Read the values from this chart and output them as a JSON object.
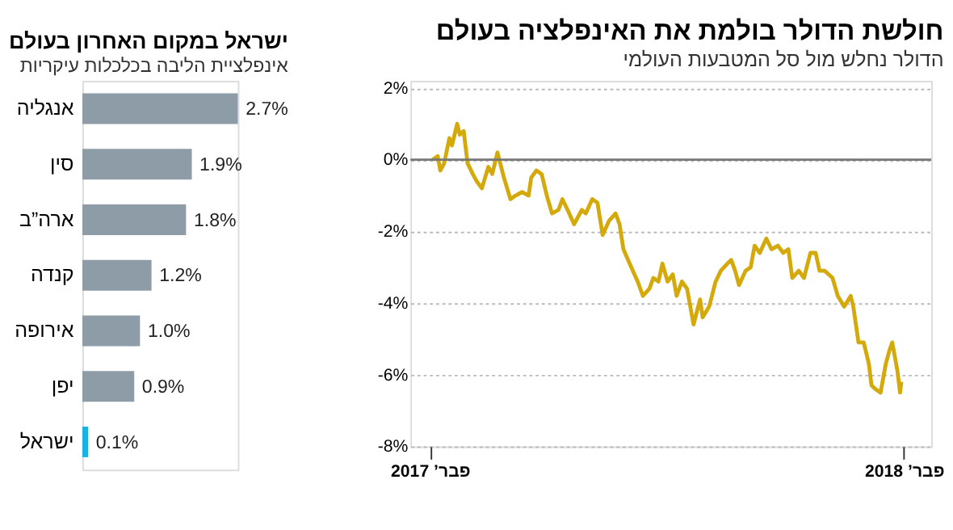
{
  "chart_data": [
    {
      "type": "line",
      "title": "חולשת הדולר בולמת את האינפלציה בעולם",
      "subtitle": "הדולר נחלש מול סל המטבעות העולמי",
      "x": [
        "2017-02-03",
        "2017-02-07",
        "2017-02-09",
        "2017-02-12",
        "2017-02-16",
        "2017-02-18",
        "2017-02-22",
        "2017-02-24",
        "2017-02-27",
        "2017-03-02",
        "2017-03-06",
        "2017-03-09",
        "2017-03-13",
        "2017-03-18",
        "2017-03-21",
        "2017-03-25",
        "2017-03-30",
        "2017-04-04",
        "2017-04-08",
        "2017-04-13",
        "2017-04-18",
        "2017-04-20",
        "2017-04-24",
        "2017-04-28",
        "2017-05-02",
        "2017-05-06",
        "2017-05-11",
        "2017-05-14",
        "2017-05-18",
        "2017-05-23",
        "2017-05-29",
        "2017-06-01",
        "2017-06-06",
        "2017-06-10",
        "2017-06-14",
        "2017-06-19",
        "2017-06-24",
        "2017-06-27",
        "2017-06-30",
        "2017-07-06",
        "2017-07-11",
        "2017-07-15",
        "2017-07-20",
        "2017-07-23",
        "2017-07-27",
        "2017-07-30",
        "2017-08-03",
        "2017-08-07",
        "2017-08-10",
        "2017-08-14",
        "2017-08-18",
        "2017-08-23",
        "2017-08-28",
        "2017-08-30",
        "2017-09-04",
        "2017-09-09",
        "2017-09-13",
        "2017-09-18",
        "2017-09-21",
        "2017-09-24",
        "2017-09-27",
        "2017-10-02",
        "2017-10-06",
        "2017-10-09",
        "2017-10-13",
        "2017-10-18",
        "2017-10-22",
        "2017-10-27",
        "2017-10-31",
        "2017-11-04",
        "2017-11-07",
        "2017-11-12",
        "2017-11-16",
        "2017-11-21",
        "2017-11-25",
        "2017-11-28",
        "2017-12-02",
        "2017-12-08",
        "2017-12-12",
        "2017-12-17",
        "2017-12-22",
        "2017-12-24",
        "2017-12-28",
        "2018-01-01",
        "2018-01-05",
        "2018-01-07",
        "2018-01-10",
        "2018-01-14",
        "2018-01-18",
        "2018-01-21",
        "2018-01-23",
        "2018-01-27",
        "2018-01-29",
        "2018-01-30"
      ],
      "series": [
        {
          "color": "#d4a90c",
          "values": [
            0.0,
            0.1,
            -0.3,
            -0.1,
            0.6,
            0.4,
            1.0,
            0.7,
            0.8,
            -0.1,
            -0.4,
            -0.6,
            -0.8,
            -0.2,
            -0.4,
            0.2,
            -0.5,
            -1.1,
            -1.0,
            -0.9,
            -1.0,
            -0.5,
            -0.3,
            -0.4,
            -1.0,
            -1.5,
            -1.4,
            -1.1,
            -1.4,
            -1.8,
            -1.4,
            -1.5,
            -1.1,
            -1.2,
            -2.1,
            -1.7,
            -1.5,
            -1.8,
            -2.5,
            -3.0,
            -3.4,
            -3.8,
            -3.6,
            -3.3,
            -3.4,
            -2.9,
            -3.4,
            -3.2,
            -3.8,
            -3.4,
            -3.6,
            -4.6,
            -3.9,
            -4.4,
            -4.1,
            -3.4,
            -3.1,
            -2.9,
            -2.8,
            -3.1,
            -3.5,
            -3.1,
            -3.0,
            -2.4,
            -2.6,
            -2.2,
            -2.5,
            -2.4,
            -2.6,
            -2.5,
            -3.3,
            -3.1,
            -3.3,
            -2.6,
            -2.6,
            -3.1,
            -3.1,
            -3.3,
            -3.8,
            -4.1,
            -3.8,
            -4.1,
            -5.1,
            -5.1,
            -5.7,
            -6.3,
            -6.4,
            -6.5,
            -5.7,
            -5.3,
            -5.1,
            -5.9,
            -6.5,
            -6.2
          ]
        }
      ],
      "xlim": [
        "2017-01-17",
        "2018-02-22"
      ],
      "xticks": [
        {
          "value": "2017-02-01",
          "label": "פבר’ 2017"
        },
        {
          "value": "2018-02-01",
          "label": "פבר’ 2018"
        }
      ],
      "ylim": [
        -8,
        2.2
      ],
      "yticks": [
        {
          "value": -8,
          "label": "-8%"
        },
        {
          "value": -6,
          "label": "-6%"
        },
        {
          "value": -4,
          "label": "-4%"
        },
        {
          "value": -2,
          "label": "-2%"
        },
        {
          "value": 0,
          "label": "0%"
        },
        {
          "value": 2,
          "label": "2%"
        }
      ],
      "ref_lines": [
        {
          "axis": "y",
          "value": 0,
          "color": "#777777"
        }
      ],
      "grid": "y",
      "line_style": "solid",
      "marker": "none"
    },
    {
      "type": "bar",
      "orientation": "horizontal",
      "title": "ישראל במקום האחרון בעולם",
      "subtitle": "אינפלציית הליבה בכלכלות עיקריות",
      "categories": [
        "אנגליה",
        "סין",
        "ארה”ב",
        "קנדה",
        "אירופה",
        "יפן",
        "ישראל"
      ],
      "values": [
        2.7,
        1.9,
        1.8,
        1.2,
        1.0,
        0.9,
        0.1
      ],
      "colors": [
        "#8d9ca6",
        "#8d9ca6",
        "#8d9ca6",
        "#8d9ca6",
        "#8d9ca6",
        "#8d9ca6",
        "#1ab0e8"
      ],
      "value_labels": [
        "2.7%",
        "1.9%",
        "1.8%",
        "1.2%",
        "1.0%",
        "0.9%",
        "0.1%"
      ]
    }
  ]
}
